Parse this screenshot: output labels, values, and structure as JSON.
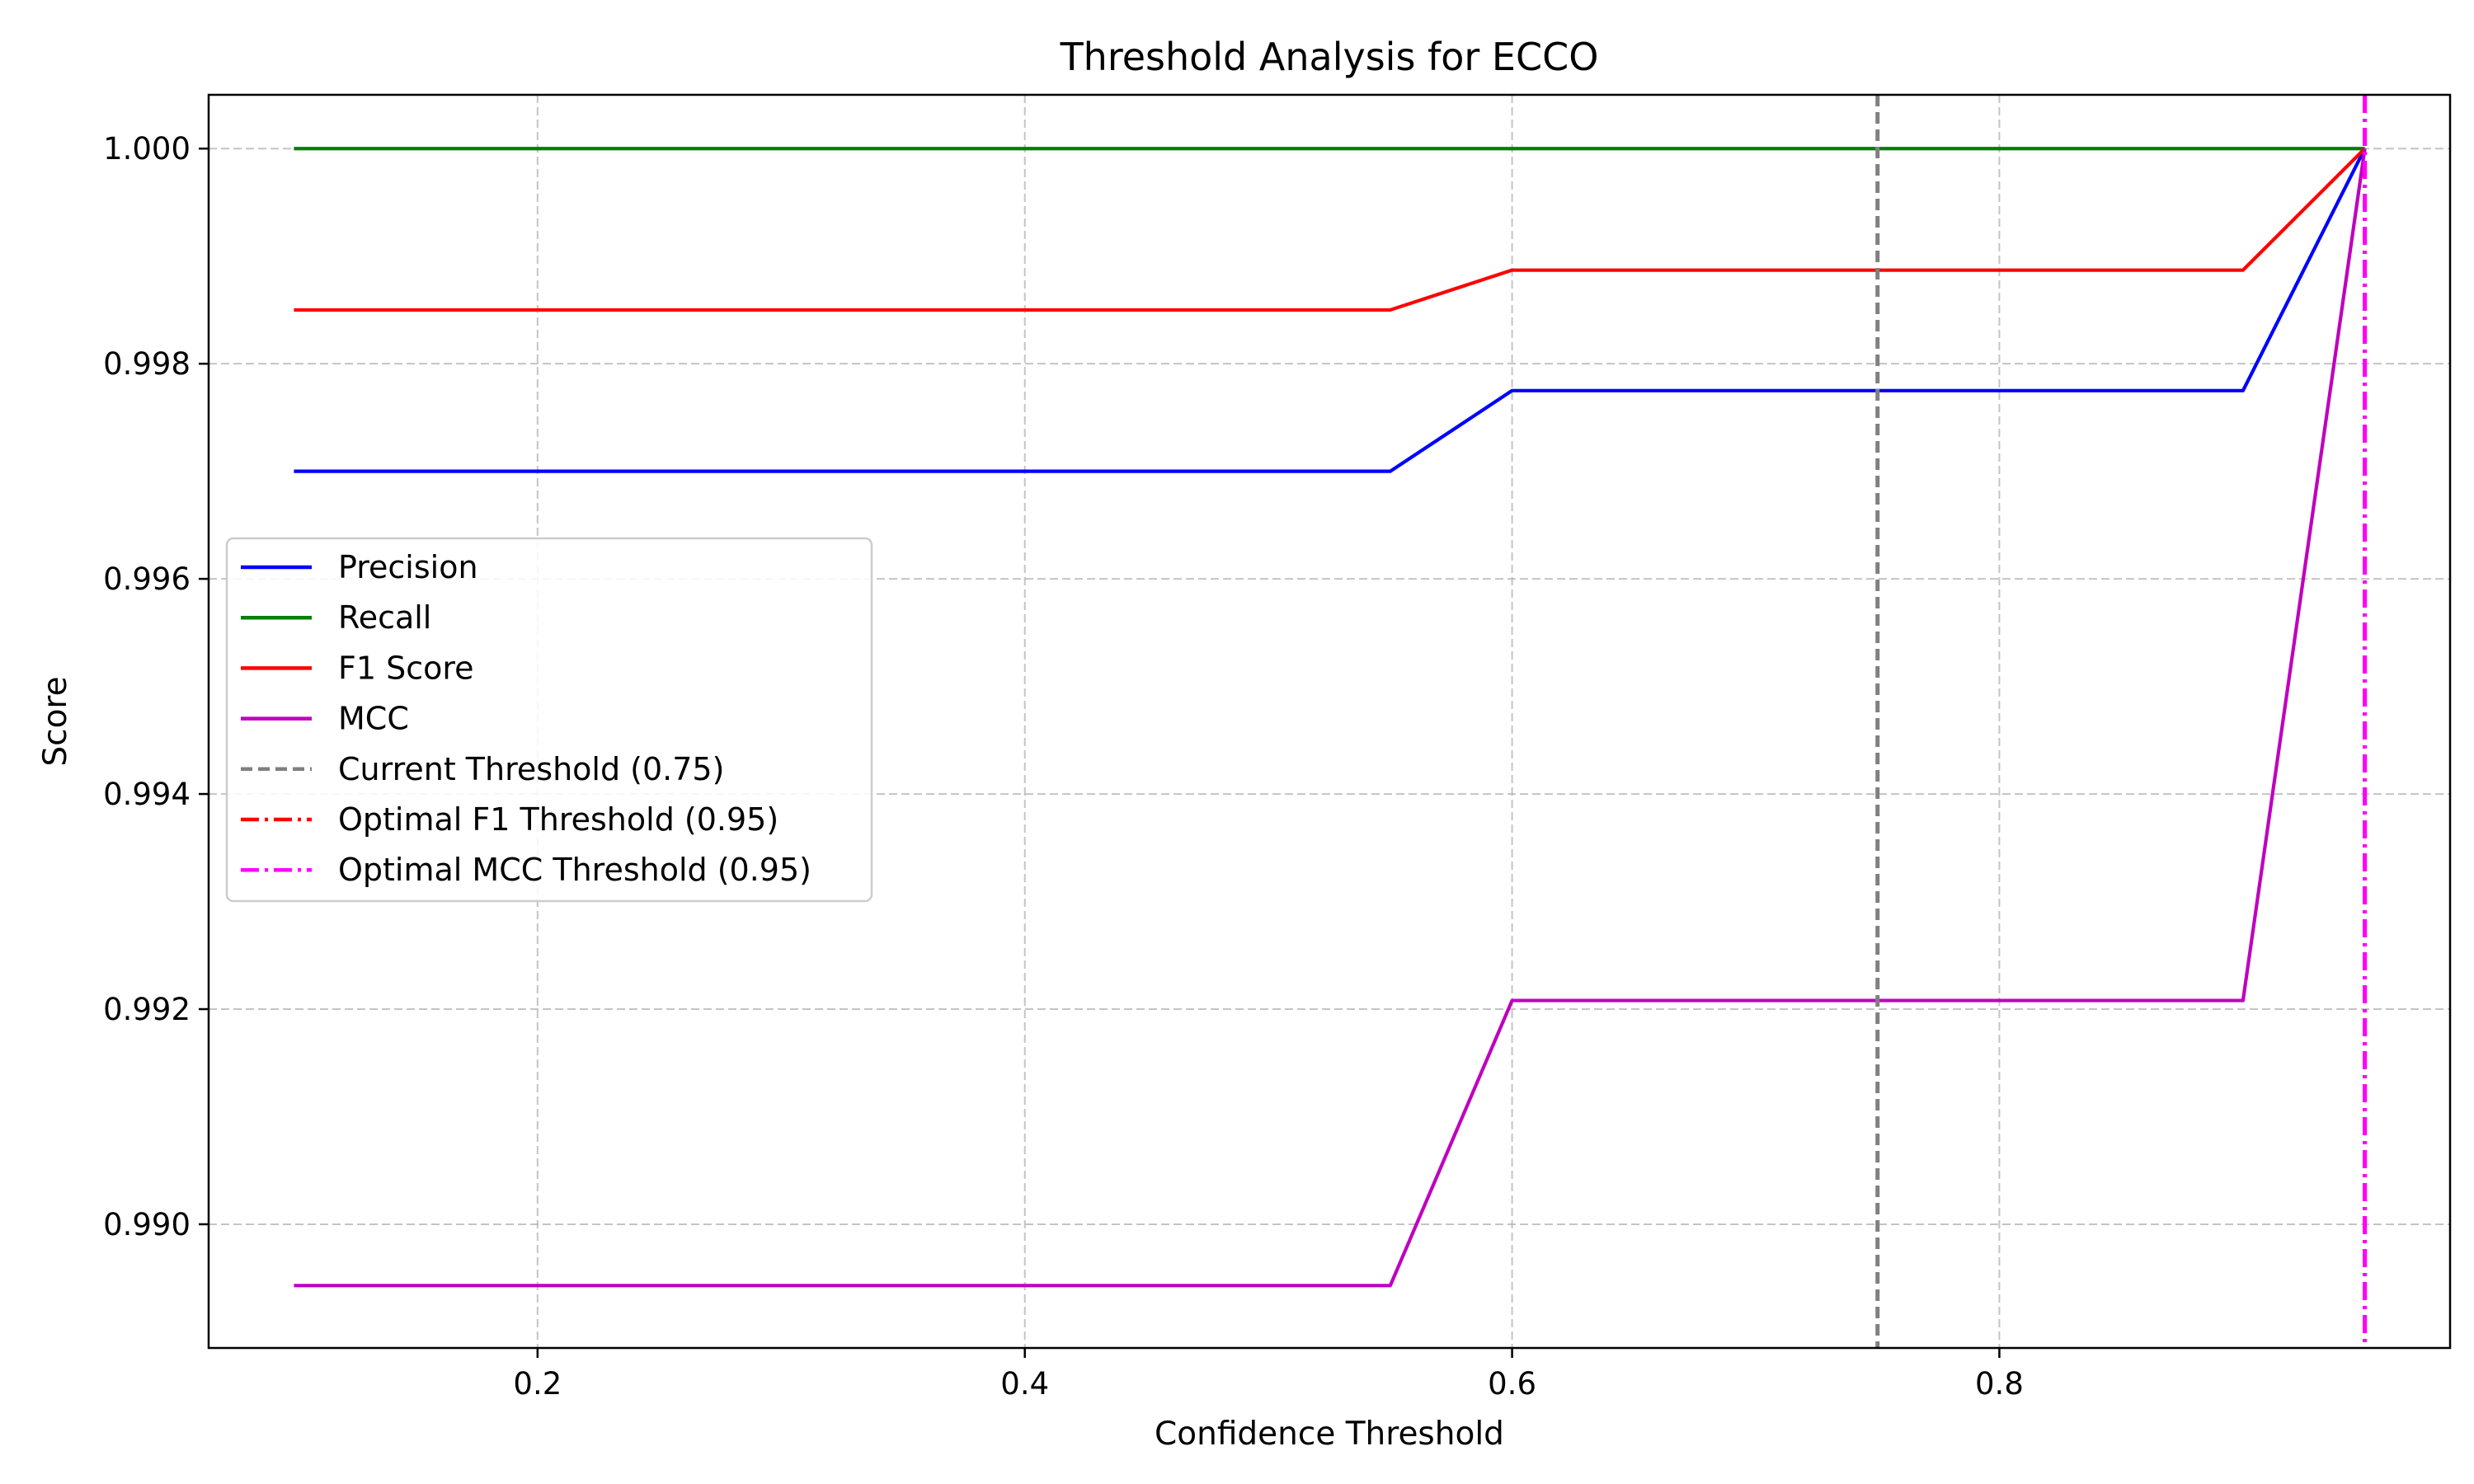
{
  "chart_data": {
    "type": "line",
    "title": "Threshold Analysis for ECCO",
    "xlabel": "Confidence Threshold",
    "ylabel": "Score",
    "xlim": [
      0.065,
      0.985
    ],
    "ylim": [
      0.98885,
      1.0005
    ],
    "xticks": [
      0.2,
      0.4,
      0.6,
      0.8
    ],
    "xtick_labels": [
      "0.2",
      "0.4",
      "0.6",
      "0.8"
    ],
    "yticks": [
      0.99,
      0.992,
      0.994,
      0.996,
      0.998,
      1.0
    ],
    "ytick_labels": [
      "0.990",
      "0.992",
      "0.994",
      "0.996",
      "0.998",
      "1.000"
    ],
    "grid": true,
    "legend_position": "center-left",
    "x": [
      0.1,
      0.15,
      0.2,
      0.25,
      0.3,
      0.35,
      0.4,
      0.45,
      0.5,
      0.55,
      0.6,
      0.65,
      0.7,
      0.75,
      0.8,
      0.85,
      0.9,
      0.95
    ],
    "series": [
      {
        "name": "Precision",
        "color": "#0000ff",
        "style": "solid",
        "values": [
          0.997,
          0.997,
          0.997,
          0.997,
          0.997,
          0.997,
          0.997,
          0.997,
          0.997,
          0.997,
          0.99775,
          0.99775,
          0.99775,
          0.99775,
          0.99775,
          0.99775,
          0.99775,
          1.0
        ]
      },
      {
        "name": "Recall",
        "color": "#008000",
        "style": "solid",
        "values": [
          1.0,
          1.0,
          1.0,
          1.0,
          1.0,
          1.0,
          1.0,
          1.0,
          1.0,
          1.0,
          1.0,
          1.0,
          1.0,
          1.0,
          1.0,
          1.0,
          1.0,
          1.0
        ]
      },
      {
        "name": "F1 Score",
        "color": "#ff0000",
        "style": "solid",
        "values": [
          0.9985,
          0.9985,
          0.9985,
          0.9985,
          0.9985,
          0.9985,
          0.9985,
          0.9985,
          0.9985,
          0.9985,
          0.99887,
          0.99887,
          0.99887,
          0.99887,
          0.99887,
          0.99887,
          0.99887,
          1.0
        ]
      },
      {
        "name": "MCC",
        "color": "#bf00bf",
        "style": "solid",
        "values": [
          0.98943,
          0.98943,
          0.98943,
          0.98943,
          0.98943,
          0.98943,
          0.98943,
          0.98943,
          0.98943,
          0.98943,
          0.99208,
          0.99208,
          0.99208,
          0.99208,
          0.99208,
          0.99208,
          0.99208,
          1.0
        ]
      }
    ],
    "vlines": [
      {
        "name": "Current Threshold (0.75)",
        "x": 0.75,
        "color": "#808080",
        "style": "dashed"
      },
      {
        "name": "Optimal F1 Threshold (0.95)",
        "x": 0.95,
        "color": "#ff0000",
        "style": "dashdot"
      },
      {
        "name": "Optimal MCC Threshold (0.95)",
        "x": 0.95,
        "color": "#ff00ff",
        "style": "dashdot"
      }
    ]
  }
}
